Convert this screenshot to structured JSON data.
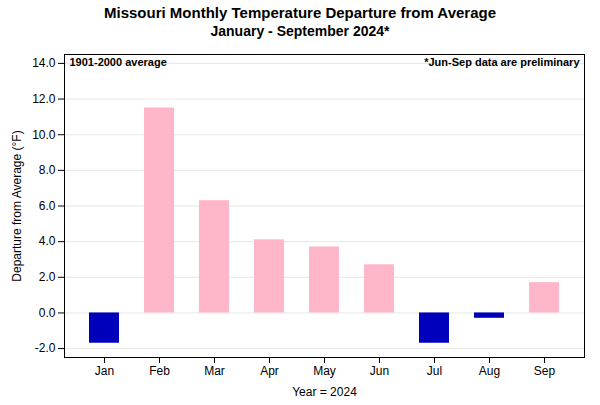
{
  "chart_data": {
    "type": "bar",
    "title": "Missouri Monthly Temperature Departure from Average",
    "subtitle": "January - September 2024*",
    "xlabel": "Year = 2024",
    "ylabel": "Departure from Average (°F)",
    "categories": [
      "Jan",
      "Feb",
      "Mar",
      "Apr",
      "May",
      "Jun",
      "Jul",
      "Aug",
      "Sep"
    ],
    "values": [
      -1.7,
      11.5,
      6.3,
      4.1,
      3.7,
      2.7,
      -1.7,
      -0.3,
      1.7
    ],
    "colors": [
      "#0000BB",
      "#FFB6C8",
      "#FFB6C8",
      "#FFB6C8",
      "#FFB6C8",
      "#FFB6C8",
      "#0000BB",
      "#0000BB",
      "#FFB6C8"
    ],
    "ylim": [
      -2.5,
      14.5
    ],
    "yticks": [
      {
        "value": -2,
        "label": "-2.0"
      },
      {
        "value": 0,
        "label": "0.0"
      },
      {
        "value": 2,
        "label": "2.0"
      },
      {
        "value": 4,
        "label": "4.0"
      },
      {
        "value": 6,
        "label": "6.0"
      },
      {
        "value": 8,
        "label": "8.0"
      },
      {
        "value": 10,
        "label": "10.0"
      },
      {
        "value": 12,
        "label": "12.0"
      },
      {
        "value": 14,
        "label": "14.0"
      }
    ],
    "grid": true,
    "annotations": [
      "1901-2000 average",
      "*Jun-Sep data are preliminary"
    ]
  }
}
